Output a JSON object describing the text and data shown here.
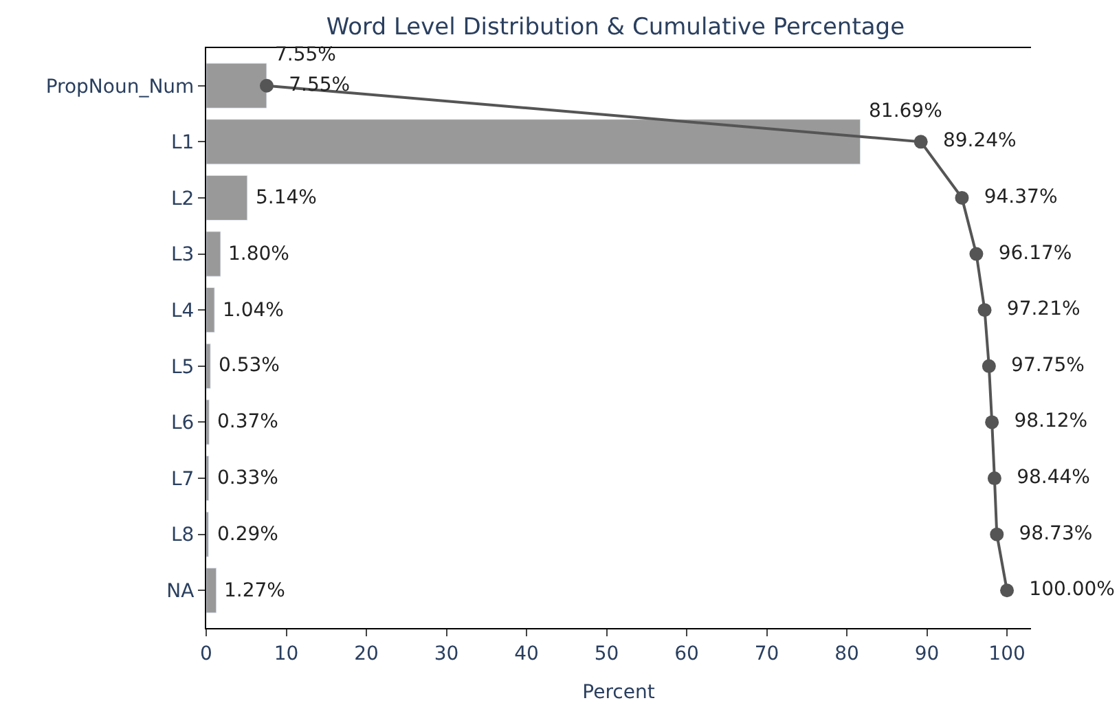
{
  "chart_data": {
    "type": "bar",
    "orientation": "horizontal",
    "title": "Word Level Distribution & Cumulative Percentage",
    "xlabel": "Percent",
    "categories": [
      "PropNoun_Num",
      "L1",
      "L2",
      "L3",
      "L4",
      "L5",
      "L6",
      "L7",
      "L8",
      "NA"
    ],
    "series": [
      {
        "color": "#999999",
        "values": [
          7.55,
          81.69,
          5.14,
          1.8,
          1.04,
          0.53,
          0.37,
          0.33,
          0.29,
          1.27
        ],
        "value_labels": [
          "7.55%",
          "81.69%",
          "5.14%",
          "1.80%",
          "1.04%",
          "0.53%",
          "0.37%",
          "0.33%",
          "0.29%",
          "1.27%"
        ]
      },
      {
        "type": "line",
        "color": "#555555",
        "marker": "circle",
        "values": [
          7.55,
          89.24,
          94.37,
          96.17,
          97.21,
          97.75,
          98.12,
          98.44,
          98.73,
          100.0
        ],
        "value_labels": [
          "7.55%",
          "89.24%",
          "94.37%",
          "96.17%",
          "97.21%",
          "97.75%",
          "98.12%",
          "98.44%",
          "98.73%",
          "100.00%"
        ]
      }
    ],
    "xlim": [
      0,
      103
    ],
    "xticks": [
      0,
      10,
      20,
      30,
      40,
      50,
      60,
      70,
      80,
      90,
      100
    ]
  }
}
